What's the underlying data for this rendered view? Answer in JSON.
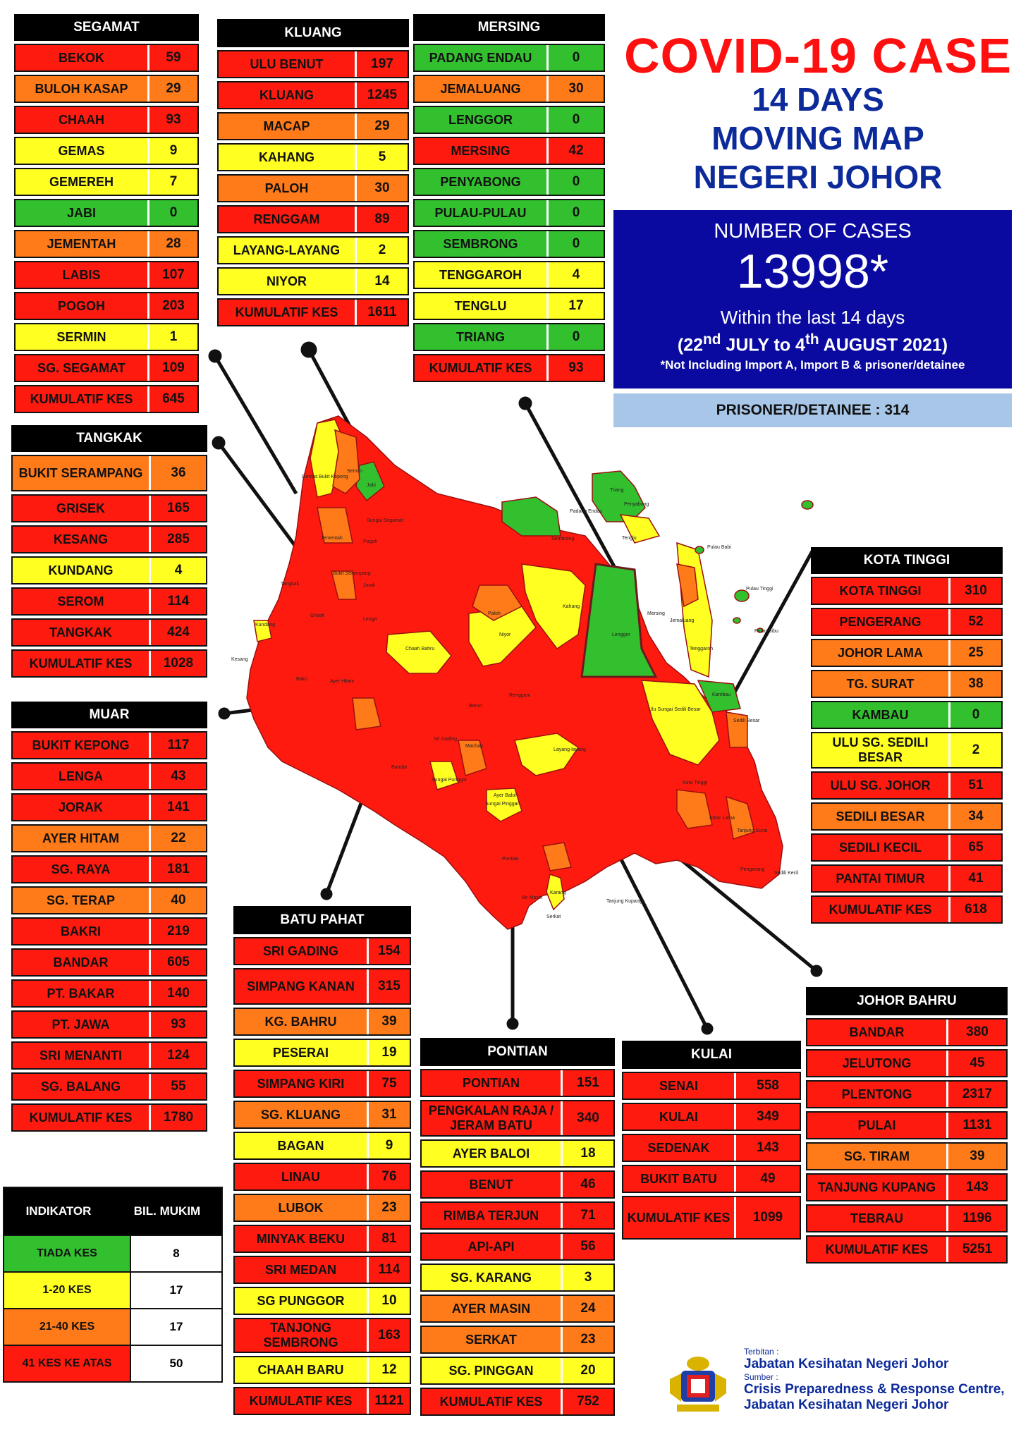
{
  "title": {
    "line1": "COVID-19 CASE",
    "line2": "14 DAYS",
    "line3": "MOVING MAP",
    "line4": "NEGERI JOHOR"
  },
  "summary": {
    "label": "NUMBER OF CASES",
    "number": "13998*",
    "within": "Within the last 14 days",
    "dates": "(22nd JULY to 4th AUGUST 2021)",
    "note": "*Not Including Import A, Import B & prisoner/detainee",
    "prisoner": "PRISONER/DETAINEE : 314"
  },
  "colors": {
    "red": "#ff1a10",
    "orange": "#ff7a18",
    "yellow": "#ffff22",
    "green": "#33c02f",
    "title_red": "#ff1010",
    "title_blue": "#0c2a9a",
    "summary_blue": "#0a0aa0"
  },
  "districts": {
    "segamat": {
      "name": "SEGAMAT",
      "rows": [
        {
          "name": "BEKOK",
          "value": "59",
          "level": "red"
        },
        {
          "name": "BULOH KASAP",
          "value": "29",
          "level": "orange"
        },
        {
          "name": "CHAAH",
          "value": "93",
          "level": "red"
        },
        {
          "name": "GEMAS",
          "value": "9",
          "level": "yellow"
        },
        {
          "name": "GEMEREH",
          "value": "7",
          "level": "yellow"
        },
        {
          "name": "JABI",
          "value": "0",
          "level": "green"
        },
        {
          "name": "JEMENTAH",
          "value": "28",
          "level": "orange"
        },
        {
          "name": "LABIS",
          "value": "107",
          "level": "red"
        },
        {
          "name": "POGOH",
          "value": "203",
          "level": "red"
        },
        {
          "name": "SERMIN",
          "value": "1",
          "level": "yellow"
        },
        {
          "name": "SG. SEGAMAT",
          "value": "109",
          "level": "red"
        },
        {
          "name": "KUMULATIF KES",
          "value": "645",
          "level": "red"
        }
      ]
    },
    "kluang": {
      "name": "KLUANG",
      "rows": [
        {
          "name": "ULU BENUT",
          "value": "197",
          "level": "red"
        },
        {
          "name": "KLUANG",
          "value": "1245",
          "level": "red"
        },
        {
          "name": "MACAP",
          "value": "29",
          "level": "orange"
        },
        {
          "name": "KAHANG",
          "value": "5",
          "level": "yellow"
        },
        {
          "name": "PALOH",
          "value": "30",
          "level": "orange"
        },
        {
          "name": "RENGGAM",
          "value": "89",
          "level": "red"
        },
        {
          "name": "LAYANG-LAYANG",
          "value": "2",
          "level": "yellow"
        },
        {
          "name": "NIYOR",
          "value": "14",
          "level": "yellow"
        },
        {
          "name": "KUMULATIF KES",
          "value": "1611",
          "level": "red"
        }
      ]
    },
    "mersing": {
      "name": "MERSING",
      "rows": [
        {
          "name": "PADANG ENDAU",
          "value": "0",
          "level": "green"
        },
        {
          "name": "JEMALUANG",
          "value": "30",
          "level": "orange"
        },
        {
          "name": "LENGGOR",
          "value": "0",
          "level": "green"
        },
        {
          "name": "MERSING",
          "value": "42",
          "level": "red"
        },
        {
          "name": "PENYABONG",
          "value": "0",
          "level": "green"
        },
        {
          "name": "PULAU-PULAU",
          "value": "0",
          "level": "green"
        },
        {
          "name": "SEMBRONG",
          "value": "0",
          "level": "green"
        },
        {
          "name": "TENGGAROH",
          "value": "4",
          "level": "yellow"
        },
        {
          "name": "TENGLU",
          "value": "17",
          "level": "yellow"
        },
        {
          "name": "TRIANG",
          "value": "0",
          "level": "green"
        },
        {
          "name": "KUMULATIF KES",
          "value": "93",
          "level": "red"
        }
      ]
    },
    "tangkak": {
      "name": "TANGKAK",
      "rows": [
        {
          "name": "BUKIT SERAMPANG",
          "value": "36",
          "level": "orange"
        },
        {
          "name": "GRISEK",
          "value": "165",
          "level": "red"
        },
        {
          "name": "KESANG",
          "value": "285",
          "level": "red"
        },
        {
          "name": "KUNDANG",
          "value": "4",
          "level": "yellow"
        },
        {
          "name": "SEROM",
          "value": "114",
          "level": "red"
        },
        {
          "name": "TANGKAK",
          "value": "424",
          "level": "red"
        },
        {
          "name": "KUMULATIF KES",
          "value": "1028",
          "level": "red"
        }
      ]
    },
    "muar": {
      "name": "MUAR",
      "rows": [
        {
          "name": "BUKIT KEPONG",
          "value": "117",
          "level": "red"
        },
        {
          "name": "LENGA",
          "value": "43",
          "level": "red"
        },
        {
          "name": "JORAK",
          "value": "141",
          "level": "red"
        },
        {
          "name": "AYER HITAM",
          "value": "22",
          "level": "orange"
        },
        {
          "name": "SG. RAYA",
          "value": "181",
          "level": "red"
        },
        {
          "name": "SG. TERAP",
          "value": "40",
          "level": "orange"
        },
        {
          "name": "BAKRI",
          "value": "219",
          "level": "red"
        },
        {
          "name": "BANDAR",
          "value": "605",
          "level": "red"
        },
        {
          "name": "PT. BAKAR",
          "value": "140",
          "level": "red"
        },
        {
          "name": "PT. JAWA",
          "value": "93",
          "level": "red"
        },
        {
          "name": "SRI MENANTI",
          "value": "124",
          "level": "red"
        },
        {
          "name": "SG. BALANG",
          "value": "55",
          "level": "red"
        },
        {
          "name": "KUMULATIF KES",
          "value": "1780",
          "level": "red"
        }
      ]
    },
    "kota_tinggi": {
      "name": "KOTA TINGGI",
      "rows": [
        {
          "name": "KOTA TINGGI",
          "value": "310",
          "level": "red"
        },
        {
          "name": "PENGERANG",
          "value": "52",
          "level": "red"
        },
        {
          "name": "JOHOR LAMA",
          "value": "25",
          "level": "orange"
        },
        {
          "name": "TG. SURAT",
          "value": "38",
          "level": "orange"
        },
        {
          "name": "KAMBAU",
          "value": "0",
          "level": "green"
        },
        {
          "name": "ULU SG. SEDILI BESAR",
          "value": "2",
          "level": "yellow"
        },
        {
          "name": "ULU SG. JOHOR",
          "value": "51",
          "level": "red"
        },
        {
          "name": "SEDILI BESAR",
          "value": "34",
          "level": "orange"
        },
        {
          "name": "SEDILI KECIL",
          "value": "65",
          "level": "red"
        },
        {
          "name": "PANTAI TIMUR",
          "value": "41",
          "level": "red"
        },
        {
          "name": "KUMULATIF KES",
          "value": "618",
          "level": "red"
        }
      ]
    },
    "batu_pahat": {
      "name": "BATU PAHAT",
      "rows": [
        {
          "name": "SRI GADING",
          "value": "154",
          "level": "red"
        },
        {
          "name": "SIMPANG KANAN",
          "value": "315",
          "level": "red"
        },
        {
          "name": "KG. BAHRU",
          "value": "39",
          "level": "orange"
        },
        {
          "name": "PESERAI",
          "value": "19",
          "level": "yellow"
        },
        {
          "name": "SIMPANG KIRI",
          "value": "75",
          "level": "red"
        },
        {
          "name": "SG. KLUANG",
          "value": "31",
          "level": "orange"
        },
        {
          "name": "BAGAN",
          "value": "9",
          "level": "yellow"
        },
        {
          "name": "LINAU",
          "value": "76",
          "level": "red"
        },
        {
          "name": "LUBOK",
          "value": "23",
          "level": "orange"
        },
        {
          "name": "MINYAK BEKU",
          "value": "81",
          "level": "red"
        },
        {
          "name": "SRI MEDAN",
          "value": "114",
          "level": "red"
        },
        {
          "name": "SG PUNGGOR",
          "value": "10",
          "level": "yellow"
        },
        {
          "name": "TANJONG SEMBRONG",
          "value": "163",
          "level": "red"
        },
        {
          "name": "CHAAH BARU",
          "value": "12",
          "level": "yellow"
        },
        {
          "name": "KUMULATIF KES",
          "value": "1121",
          "level": "red"
        }
      ]
    },
    "pontian": {
      "name": "PONTIAN",
      "rows": [
        {
          "name": "PONTIAN",
          "value": "151",
          "level": "red"
        },
        {
          "name": "PENGKALAN RAJA / JERAM BATU",
          "value": "340",
          "level": "red"
        },
        {
          "name": "AYER BALOI",
          "value": "18",
          "level": "yellow"
        },
        {
          "name": "BENUT",
          "value": "46",
          "level": "red"
        },
        {
          "name": "RIMBA TERJUN",
          "value": "71",
          "level": "red"
        },
        {
          "name": "API-API",
          "value": "56",
          "level": "red"
        },
        {
          "name": "SG. KARANG",
          "value": "3",
          "level": "yellow"
        },
        {
          "name": "AYER MASIN",
          "value": "24",
          "level": "orange"
        },
        {
          "name": "SERKAT",
          "value": "23",
          "level": "orange"
        },
        {
          "name": "SG. PINGGAN",
          "value": "20",
          "level": "yellow"
        },
        {
          "name": "KUMULATIF KES",
          "value": "752",
          "level": "red"
        }
      ]
    },
    "kulai": {
      "name": "KULAI",
      "rows": [
        {
          "name": "SENAI",
          "value": "558",
          "level": "red"
        },
        {
          "name": "KULAI",
          "value": "349",
          "level": "red"
        },
        {
          "name": "SEDENAK",
          "value": "143",
          "level": "red"
        },
        {
          "name": "BUKIT BATU",
          "value": "49",
          "level": "red"
        },
        {
          "name": "KUMULATIF KES",
          "value": "1099",
          "level": "red"
        }
      ]
    },
    "johor_bahru": {
      "name": "JOHOR BAHRU",
      "rows": [
        {
          "name": "BANDAR",
          "value": "380",
          "level": "red"
        },
        {
          "name": "JELUTONG",
          "value": "45",
          "level": "red"
        },
        {
          "name": "PLENTONG",
          "value": "2317",
          "level": "red"
        },
        {
          "name": "PULAI",
          "value": "1131",
          "level": "red"
        },
        {
          "name": "SG. TIRAM",
          "value": "39",
          "level": "orange"
        },
        {
          "name": "TANJUNG KUPANG",
          "value": "143",
          "level": "red"
        },
        {
          "name": "TEBRAU",
          "value": "1196",
          "level": "red"
        },
        {
          "name": "KUMULATIF KES",
          "value": "5251",
          "level": "red"
        }
      ]
    }
  },
  "legend": {
    "header_indicator": "INDIKATOR",
    "header_count": "BIL. MUKIM",
    "rows": [
      {
        "label": "TIADA KES",
        "value": "8",
        "level": "green"
      },
      {
        "label": "1-20 KES",
        "value": "17",
        "level": "yellow"
      },
      {
        "label": "21-40 KES",
        "value": "17",
        "level": "orange"
      },
      {
        "label": "41 KES KE ATAS",
        "value": "50",
        "level": "red"
      }
    ]
  },
  "footer": {
    "terbitan_label": "Terbitan :",
    "publisher": "Jabatan Kesihatan Negeri Johor",
    "sumber_label": "Sumber :",
    "source_line1": "Crisis Preparedness & Response Centre,",
    "source_line2": "Jabatan Kesihatan Negeri Johor"
  },
  "map_labels": {
    "gemas": "Gemas",
    "bukit_kepong": "Bukit Kepong",
    "sermin": "Sermin",
    "jabi": "Jabi",
    "jementah": "Jementah",
    "bukit_serampang": "Bukit Serampang",
    "pogoh": "Pogoh",
    "sungai_segamat": "Sungai Segamat",
    "tangkak": "Tangkak",
    "grisek": "Grisek",
    "kesang": "Kesang",
    "kundang": "Kundang",
    "bakri": "Bakri",
    "padang_endau": "Padang Endau",
    "penyabong": "Penyabong",
    "triang": "Triang",
    "sembrong": "Sembrong",
    "tenglu": "Tenglu",
    "pulau_babi": "Pulau Babi",
    "pulau_tinggi": "Pulau Tinggi",
    "pulau_sibu": "Pulau Sibu",
    "kahang": "Kahang",
    "lenggor": "Lenggor",
    "mersing": "Mersing",
    "jemaluang": "Jemaluang",
    "tenggaroh": "Tenggaroh",
    "kambau": "Kambau",
    "paloh": "Paloh",
    "niyor": "Niyor",
    "chaah_bahru": "Chaah Bahru",
    "ulu_sungai_sedili": "Ulu Sungai Sedili Besar",
    "layang": "Layang-layang",
    "kota_tinggi": "Kota Tinggi",
    "johor_lama": "Johor Lama",
    "tanjung_surat": "Tanjung Surat",
    "pontian": "Pontian",
    "serkat": "Serkat",
    "tanjung_kupang": "Tanjung Kupang",
    "machap": "Machap",
    "benut": "Benut",
    "renggam": "Renggam",
    "ayer_hitam": "Ayer Hitam",
    "bandar_muar": "Bandar",
    "sri_gading": "Sri Gading",
    "sungai_punggor": "Sungai Punggor",
    "lenga": "Lenga",
    "jorak": "Jorak",
    "sedili_besar": "Sedili Besar",
    "pengerang": "Pengerang",
    "sedili_kecil": "Sedili Kecil",
    "ayer_masin": "Air Masin",
    "karang": "Karang",
    "ayer_baloi": "Ayer Baloi",
    "sungai_pinggan": "Sungai Pinggan"
  }
}
